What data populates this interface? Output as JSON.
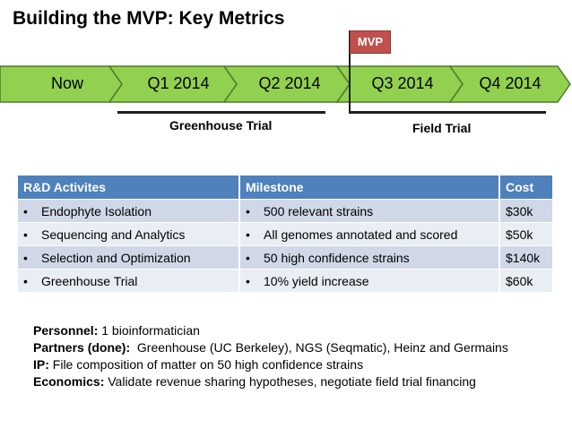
{
  "title": "Building the MVP: Key Metrics",
  "timeline": {
    "phases": [
      "Now",
      "Q1 2014",
      "Q2 2014",
      "Q3 2014",
      "Q4 2014"
    ],
    "milestone_label": "MVP",
    "trials": [
      "Greenhouse Trial",
      "Field Trial"
    ],
    "colors": {
      "fill": "#92d050",
      "stroke": "#4e7a2a",
      "milestone": "#c0504d"
    }
  },
  "table": {
    "headers": [
      "R&D Activites",
      "Milestone",
      "Cost"
    ],
    "rows": [
      [
        "Endophyte Isolation",
        "500 relevant strains",
        "$30k"
      ],
      [
        "Sequencing and Analytics",
        "All genomes annotated and scored",
        "$50k"
      ],
      [
        "Selection and Optimization",
        "50 high confidence strains",
        "$140k"
      ],
      [
        "Greenhouse Trial",
        "10% yield increase",
        "$60k"
      ]
    ]
  },
  "notes": {
    "personnel_label": "Personnel:",
    "personnel_value": " 1 bioinformatician",
    "partners_label": "Partners (done):",
    "partners_value": "  Greenhouse (UC Berkeley), NGS (Seqmatic), Heinz and Germains",
    "ip_label": "IP:",
    "ip_value": " File composition of matter on 50 high confidence strains",
    "economics_label": "Economics:",
    "economics_value": " Validate revenue sharing hypotheses, negotiate field trial financing"
  }
}
